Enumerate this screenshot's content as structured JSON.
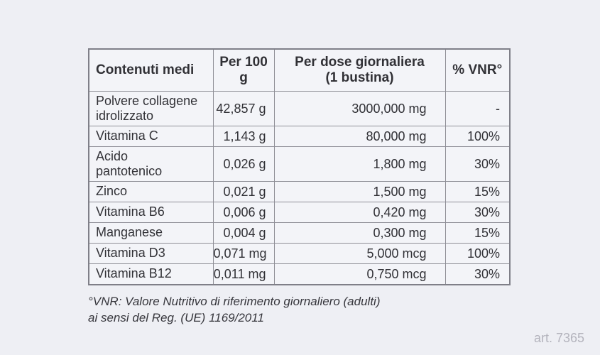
{
  "page": {
    "art_number": "art. 7365",
    "colors": {
      "background": "#eeeff4",
      "table_background": "#f3f4f8",
      "border": "#8f8f97",
      "text": "#313136",
      "art_number_text": "#b4b4bd"
    }
  },
  "table": {
    "headers": [
      {
        "label": "Contenuti medi"
      },
      {
        "label": "Per 100 g"
      },
      {
        "label": "Per dose giornaliera",
        "sublabel": "(1 bustina)"
      },
      {
        "label": "% VNR°"
      }
    ],
    "rows": [
      {
        "name": "Polvere collagene\nidrolizzato",
        "per_100g": "42,857 g",
        "per_dose": "3000,000 mg",
        "vnr": "-"
      },
      {
        "name": "Vitamina C",
        "per_100g": "1,143 g",
        "per_dose": "80,000 mg",
        "vnr": "100%"
      },
      {
        "name": "Acido\npantotenico",
        "per_100g": "0,026 g",
        "per_dose": "1,800 mg",
        "vnr": "30%"
      },
      {
        "name": "Zinco",
        "per_100g": "0,021 g",
        "per_dose": "1,500 mg",
        "vnr": "15%"
      },
      {
        "name": "Vitamina B6",
        "per_100g": "0,006 g",
        "per_dose": "0,420 mg",
        "vnr": "30%"
      },
      {
        "name": "Manganese",
        "per_100g": "0,004 g",
        "per_dose": "0,300 mg",
        "vnr": "15%"
      },
      {
        "name": "Vitamina D3",
        "per_100g": "0,071 mg",
        "per_dose": "5,000 mcg",
        "vnr": "100%"
      },
      {
        "name": "Vitamina B12",
        "per_100g": "0,011 mg",
        "per_dose": "0,750 mcg",
        "vnr": "30%"
      }
    ]
  },
  "footnote": {
    "line1": "°VNR: Valore Nutritivo di riferimento giornaliero (adulti)",
    "line2": "ai sensi del Reg. (UE) 1169/2011"
  }
}
